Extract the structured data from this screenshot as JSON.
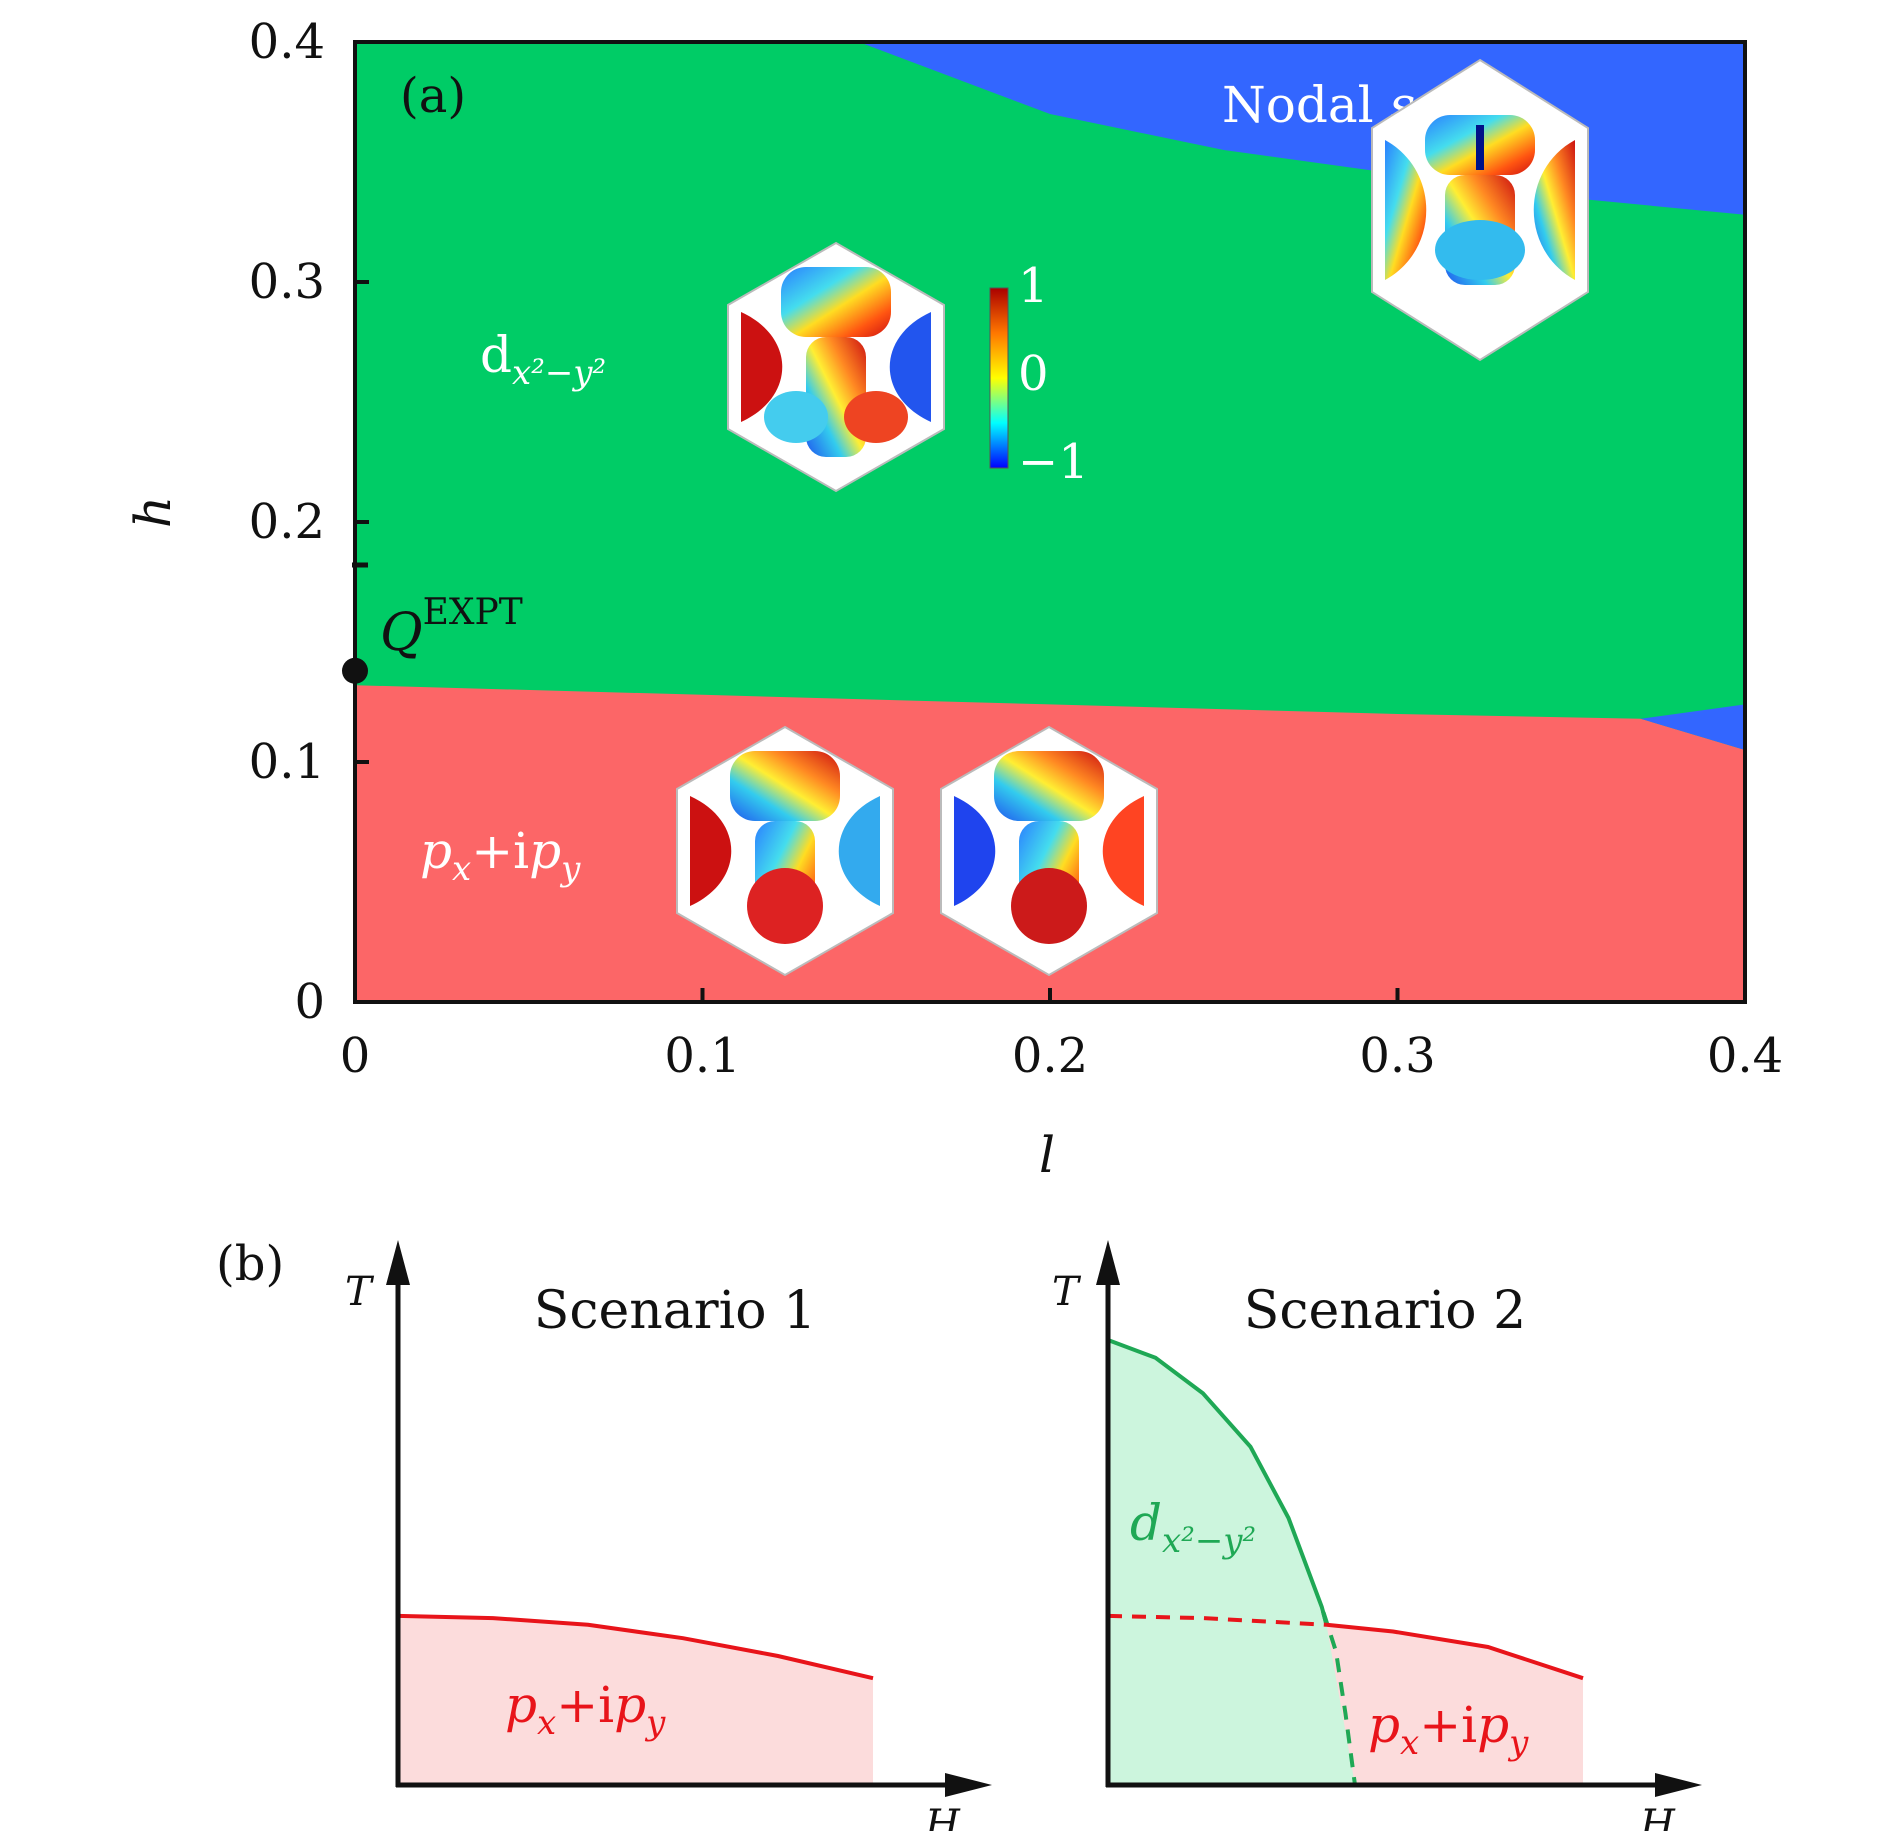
{
  "chart_data": [
    {
      "type": "area",
      "panel_label": "(a)",
      "xlabel": "l",
      "ylabel": "h",
      "xlim": [
        0,
        0.4
      ],
      "ylim": [
        0,
        0.4
      ],
      "x_ticks": [
        "0",
        "0.1",
        "0.2",
        "0.3",
        "0.4"
      ],
      "y_ticks": [
        "0",
        "0.1",
        "0.2",
        "0.3",
        "0.4"
      ],
      "regions": [
        {
          "name": "px+ipy",
          "label_main": "p",
          "label_sub1": "x",
          "label_plus": "+i",
          "label_p2": "p",
          "label_sub2": "y",
          "color": "#fc6667"
        },
        {
          "name": "dx2-y2",
          "label_main": "d",
          "label_sub": "x²−y²",
          "color": "#00cc66"
        },
        {
          "name": "Nodal s",
          "label_main": "Nodal ",
          "label_italic": "s",
          "color": "#3366ff"
        }
      ],
      "boundaries": {
        "red_green": {
          "x": [
            0,
            0.1,
            0.2,
            0.3,
            0.37,
            0.4
          ],
          "y": [
            0.132,
            0.128,
            0.124,
            0.12,
            0.118,
            0.105
          ]
        },
        "green_blue_bottom": {
          "x": [
            0.37,
            0.4
          ],
          "y": [
            0.118,
            0.124
          ]
        },
        "green_blue_top": {
          "x": [
            0.145,
            0.2,
            0.25,
            0.3,
            0.35,
            0.4
          ],
          "y": [
            0.4,
            0.37,
            0.355,
            0.345,
            0.335,
            0.328
          ]
        }
      },
      "marker": {
        "name": "Q",
        "label_q": "Q",
        "label_sup": "EXPT",
        "l": 0,
        "h": 0.138
      },
      "colorbar": {
        "ticks": [
          "1",
          "0",
          "−1"
        ],
        "range": [
          -1,
          1
        ],
        "colormap": "jet"
      }
    },
    {
      "type": "area",
      "panel_label": "(b)",
      "title": "Scenario 1",
      "xlabel": "H",
      "ylabel": "T",
      "regions": [
        {
          "name": "px+ipy",
          "color_fill": "#fcdcdc",
          "color_line": "#e8141a"
        }
      ],
      "label": {
        "p": "p",
        "sub1": "x",
        "plus": "+i",
        "p2": "p",
        "sub2": "y"
      },
      "red_line": {
        "x": [
          0,
          0.2,
          0.4,
          0.6,
          0.8,
          1.0
        ],
        "y": [
          0.38,
          0.375,
          0.36,
          0.33,
          0.29,
          0.24
        ]
      }
    },
    {
      "type": "area",
      "title": "Scenario 2",
      "xlabel": "H",
      "ylabel": "T",
      "regions": [
        {
          "name": "dx2-y2",
          "color_fill": "#ccf5dd",
          "color_line": "#1fa855"
        },
        {
          "name": "px+ipy",
          "color_fill": "#fcdcdc",
          "color_line": "#e8141a"
        }
      ],
      "label_green": {
        "d": "d",
        "sub": "x²−y²"
      },
      "label_red": {
        "p": "p",
        "sub1": "x",
        "plus": "+i",
        "p2": "p",
        "sub2": "y"
      },
      "green_line": {
        "x": [
          0,
          0.1,
          0.2,
          0.3,
          0.38,
          0.45,
          0.48,
          0.5,
          0.52
        ],
        "y": [
          1.0,
          0.96,
          0.88,
          0.76,
          0.6,
          0.4,
          0.3,
          0.16,
          0.0
        ]
      },
      "red_line": {
        "x": [
          0,
          0.2,
          0.46,
          0.6,
          0.8,
          1.0
        ],
        "y": [
          0.38,
          0.375,
          0.36,
          0.345,
          0.31,
          0.24
        ]
      }
    }
  ]
}
